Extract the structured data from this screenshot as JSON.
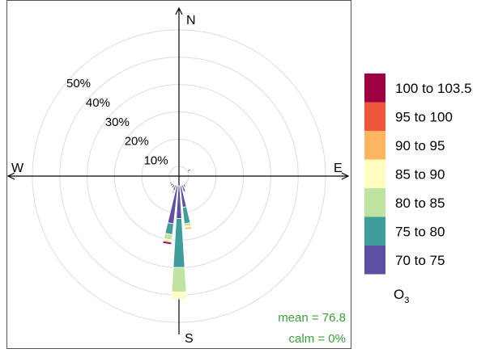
{
  "chart_data": {
    "type": "polar-stacked-bar",
    "directions": {
      "north": "N",
      "east": "E",
      "south": "S",
      "west": "W"
    },
    "radial_ticks": [
      10,
      20,
      30,
      40,
      50
    ],
    "radial_tick_labels": [
      "10%",
      "20%",
      "30%",
      "40%",
      "50%"
    ],
    "legend_title": "O",
    "legend_title_subscript": "3",
    "bins": [
      {
        "label": "70 to 75",
        "color": "#5e4fa2"
      },
      {
        "label": "75 to 80",
        "color": "#3f9e99"
      },
      {
        "label": "80 to 85",
        "color": "#bfe3a0"
      },
      {
        "label": "85 to 90",
        "color": "#fefec0"
      },
      {
        "label": "90 to 95",
        "color": "#fdb55f"
      },
      {
        "label": "95 to 100",
        "color": "#f0553d"
      },
      {
        "label": "100 to 103.5",
        "color": "#9e0142"
      }
    ],
    "sectors": [
      {
        "direction_deg": 60,
        "values": [
          1.2,
          0,
          0,
          0,
          0,
          0,
          0
        ]
      },
      {
        "direction_deg": 70,
        "values": [
          0.5,
          0,
          0,
          0,
          0,
          0,
          0
        ]
      },
      {
        "direction_deg": 150,
        "values": [
          1.0,
          0,
          0,
          0,
          0,
          0,
          0
        ]
      },
      {
        "direction_deg": 160,
        "values": [
          2.5,
          0,
          0,
          0,
          0,
          0,
          0
        ]
      },
      {
        "direction_deg": 170,
        "values": [
          8.0,
          6.0,
          1.0,
          0.5,
          0.7,
          0,
          0
        ]
      },
      {
        "direction_deg": 180,
        "values": [
          12.0,
          18.0,
          9.0,
          2.5,
          0,
          0,
          0
        ]
      },
      {
        "direction_deg": 190,
        "values": [
          14.0,
          4.0,
          2.0,
          0.5,
          0,
          0.4,
          0.8
        ]
      },
      {
        "direction_deg": 200,
        "values": [
          2.0,
          0,
          0,
          0,
          0.5,
          0.5,
          0
        ]
      },
      {
        "direction_deg": 210,
        "values": [
          1.3,
          0,
          0,
          0,
          0,
          0,
          0
        ]
      },
      {
        "direction_deg": 220,
        "values": [
          1.0,
          0,
          0,
          0,
          0,
          0,
          0
        ]
      },
      {
        "direction_deg": 230,
        "values": [
          0.7,
          0,
          0,
          0,
          0,
          0,
          0
        ]
      }
    ],
    "stats": {
      "mean": "mean = 76.8",
      "calm": "calm = 0%"
    },
    "colors": {
      "axis": "#000000",
      "grid": "#dddddd",
      "stats_text": "#3aa13a"
    }
  }
}
